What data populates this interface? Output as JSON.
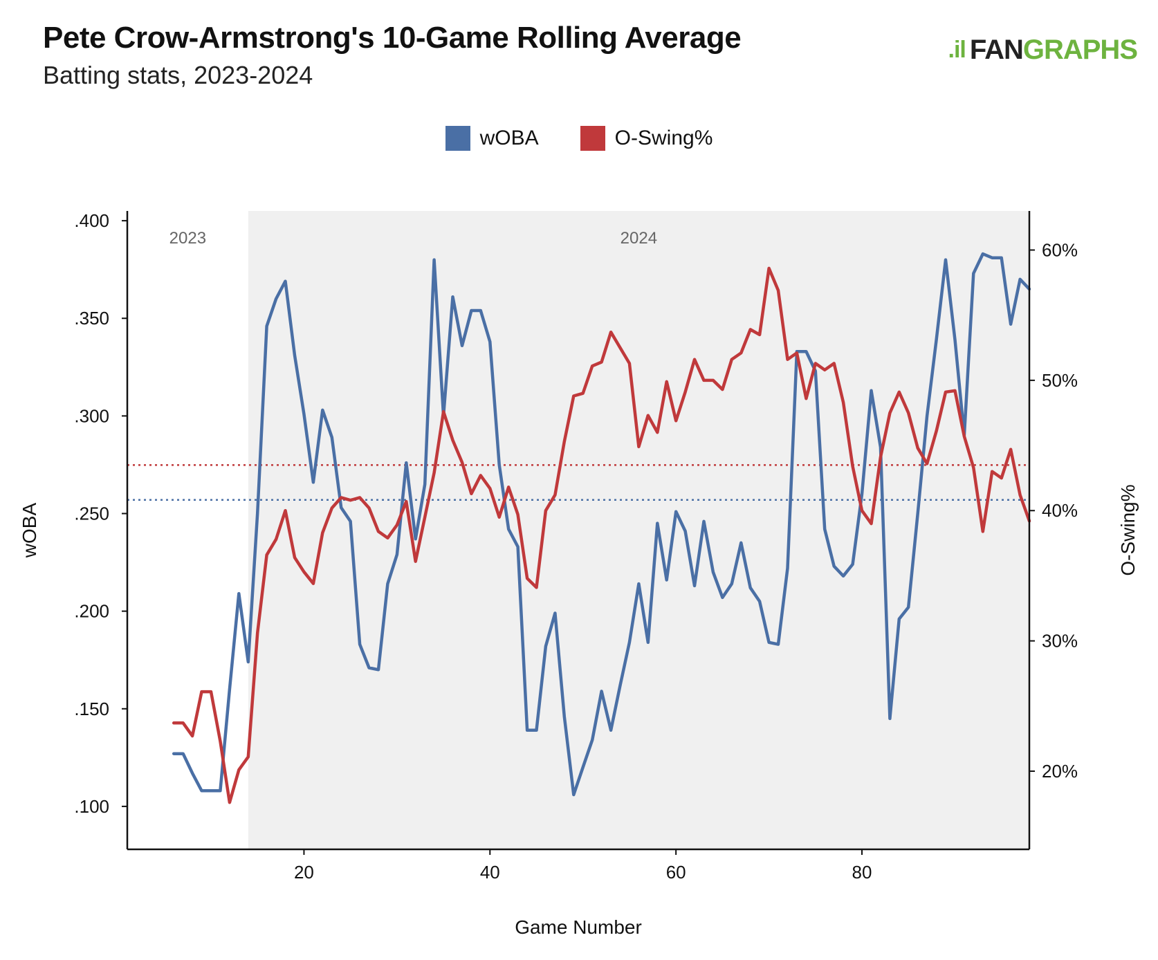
{
  "header": {
    "title": "Pete Crow-Armstrong's 10-Game Rolling Average",
    "subtitle": "Batting stats, 2023-2024"
  },
  "logo": {
    "mark": ".il",
    "fan": "FAN",
    "graphs": "GRAPHS"
  },
  "chart_data": {
    "type": "line",
    "title": "Pete Crow-Armstrong's 10-Game Rolling Average",
    "subtitle": "Batting stats, 2023-2024",
    "xlabel": "Game Number",
    "ylabel_left": "wOBA",
    "ylabel_right": "O-Swing%",
    "xlim": [
      1,
      98
    ],
    "xticks": [
      20,
      40,
      60,
      80
    ],
    "ylim_left": [
      0.078,
      0.405
    ],
    "yticks_left": [
      ".100",
      ".150",
      ".200",
      ".250",
      ".300",
      ".350",
      ".400"
    ],
    "ylim_right": [
      14,
      63
    ],
    "yticks_right": [
      "20%",
      "30%",
      "40%",
      "50%",
      "60%"
    ],
    "season_regions": [
      {
        "label": "2023",
        "start": 1,
        "end": 14
      },
      {
        "label": "2024",
        "start": 14,
        "end": 98
      }
    ],
    "reference_lines": [
      {
        "series": "wOBA",
        "value": 0.257,
        "color": "#4a6fa5"
      },
      {
        "series": "O-Swing%",
        "value": 43.5,
        "color": "#c0393b"
      }
    ],
    "x": [
      6,
      7,
      8,
      9,
      10,
      11,
      12,
      13,
      14,
      15,
      16,
      17,
      18,
      19,
      20,
      21,
      22,
      23,
      24,
      25,
      26,
      27,
      28,
      29,
      30,
      31,
      32,
      33,
      34,
      35,
      36,
      37,
      38,
      39,
      40,
      41,
      42,
      43,
      44,
      45,
      46,
      47,
      48,
      49,
      50,
      51,
      52,
      53,
      54,
      55,
      56,
      57,
      58,
      59,
      60,
      61,
      62,
      63,
      64,
      65,
      66,
      67,
      68,
      69,
      70,
      71,
      72,
      73,
      74,
      75,
      76,
      77,
      78,
      79,
      80,
      81,
      82,
      83,
      84,
      85,
      86,
      87,
      88,
      89,
      90,
      91,
      92,
      93,
      94,
      95,
      96,
      97,
      98
    ],
    "series": [
      {
        "name": "wOBA",
        "color": "#4a6fa5",
        "axis": "left",
        "values": [
          0.127,
          0.127,
          0.117,
          0.108,
          0.108,
          0.108,
          0.16,
          0.209,
          0.174,
          0.25,
          0.346,
          0.36,
          0.369,
          0.331,
          0.301,
          0.266,
          0.303,
          0.289,
          0.253,
          0.246,
          0.183,
          0.171,
          0.17,
          0.214,
          0.229,
          0.276,
          0.237,
          0.265,
          0.38,
          0.3,
          0.361,
          0.336,
          0.354,
          0.354,
          0.338,
          0.275,
          0.242,
          0.233,
          0.139,
          0.139,
          0.182,
          0.199,
          0.146,
          0.106,
          0.12,
          0.134,
          0.159,
          0.139,
          0.162,
          0.184,
          0.214,
          0.184,
          0.245,
          0.216,
          0.251,
          0.241,
          0.213,
          0.246,
          0.22,
          0.207,
          0.214,
          0.235,
          0.212,
          0.205,
          0.184,
          0.183,
          0.222,
          0.333,
          0.333,
          0.323,
          0.242,
          0.223,
          0.218,
          0.224,
          0.26,
          0.313,
          0.284,
          0.145,
          0.196,
          0.202,
          0.25,
          0.3,
          0.339,
          0.38,
          0.339,
          0.29,
          0.373,
          0.383,
          0.381,
          0.381,
          0.347,
          0.37,
          0.365
        ]
      },
      {
        "name": "O-Swing%",
        "color": "#c0393b",
        "axis": "right",
        "values": [
          23.7,
          23.7,
          22.7,
          26.1,
          26.1,
          22.3,
          17.6,
          20.1,
          21.1,
          30.6,
          36.6,
          37.8,
          40.0,
          36.4,
          35.3,
          34.4,
          38.3,
          40.2,
          41.0,
          40.8,
          41.0,
          40.2,
          38.4,
          37.9,
          38.9,
          40.7,
          36.1,
          39.5,
          42.9,
          47.6,
          45.4,
          43.7,
          41.3,
          42.7,
          41.7,
          39.5,
          41.8,
          39.7,
          34.8,
          34.1,
          40.0,
          41.2,
          45.3,
          48.8,
          49.0,
          51.1,
          51.4,
          53.7,
          52.5,
          51.3,
          44.9,
          47.3,
          46.0,
          49.9,
          46.9,
          49.1,
          51.6,
          50.0,
          50.0,
          49.3,
          51.6,
          52.1,
          53.9,
          53.5,
          58.6,
          56.9,
          51.6,
          52.1,
          48.6,
          51.3,
          50.8,
          51.3,
          48.3,
          43.4,
          40.0,
          39.0,
          44.1,
          47.5,
          49.1,
          47.5,
          44.8,
          43.6,
          46.1,
          49.1,
          49.2,
          45.7,
          43.3,
          38.4,
          43.0,
          42.5,
          44.7,
          41.2,
          39.2
        ]
      }
    ]
  },
  "legend": [
    {
      "label": "wOBA",
      "color": "#4a6fa5"
    },
    {
      "label": "O-Swing%",
      "color": "#c0393b"
    }
  ],
  "colors": {
    "region_2024": "#f0f0f0",
    "axis": "#111111"
  }
}
